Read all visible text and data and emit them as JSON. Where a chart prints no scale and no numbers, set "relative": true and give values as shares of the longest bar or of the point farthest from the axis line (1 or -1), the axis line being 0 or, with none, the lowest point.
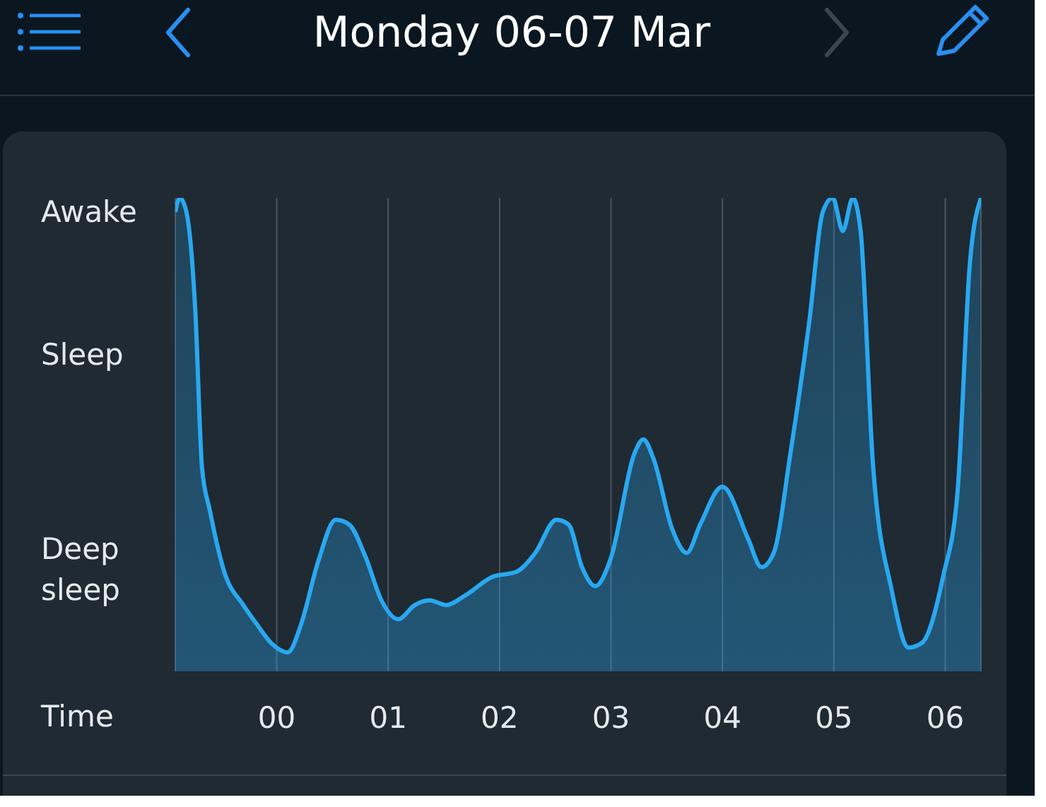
{
  "chart_data": {
    "type": "area",
    "title": "Monday 06-07 Mar",
    "xlabel": "Time",
    "relative": true,
    "annotations": [
      "Awake",
      "Sleep",
      "Deep sleep"
    ],
    "x": [
      -0.91,
      -0.87,
      -0.81,
      -0.73,
      -0.67,
      -0.6,
      -0.47,
      -0.3,
      -0.18,
      -0.05,
      0.1,
      0.22,
      0.37,
      0.53,
      0.65,
      0.8,
      0.94,
      1.09,
      1.24,
      1.37,
      1.52,
      1.69,
      1.94,
      2.15,
      2.32,
      2.51,
      2.62,
      2.74,
      2.86,
      3.0,
      3.21,
      3.29,
      3.38,
      3.55,
      3.68,
      3.8,
      4.0,
      4.23,
      4.35,
      4.46,
      4.61,
      4.78,
      4.9,
      4.99,
      5.08,
      5.17,
      5.24,
      5.35,
      5.52,
      5.67,
      5.79,
      5.98,
      6.11,
      6.22,
      6.32
    ],
    "values": [
      0.97,
      1,
      0.97,
      0.76,
      0.43,
      0.34,
      0.21,
      0.14,
      0.1,
      0.06,
      0.04,
      0.1,
      0.23,
      0.32,
      0.31,
      0.24,
      0.15,
      0.11,
      0.14,
      0.15,
      0.14,
      0.16,
      0.2,
      0.21,
      0.25,
      0.32,
      0.31,
      0.22,
      0.18,
      0.24,
      0.46,
      0.49,
      0.45,
      0.3,
      0.25,
      0.31,
      0.39,
      0.28,
      0.22,
      0.25,
      0.46,
      0.74,
      0.97,
      1,
      0.93,
      1,
      0.93,
      0.44,
      0.17,
      0.05,
      0.06,
      0.2,
      0.38,
      0.86,
      1
    ],
    "color": "#29a8f0",
    "xlim": [
      -0.91,
      6.32
    ],
    "xticks": [
      {
        "value": 0,
        "label": "00"
      },
      {
        "value": 1,
        "label": "01"
      },
      {
        "value": 2,
        "label": "02"
      },
      {
        "value": 3,
        "label": "03"
      },
      {
        "value": 4,
        "label": "04"
      },
      {
        "value": 5,
        "label": "05"
      },
      {
        "value": 6,
        "label": "06"
      }
    ],
    "grid": "x"
  }
}
